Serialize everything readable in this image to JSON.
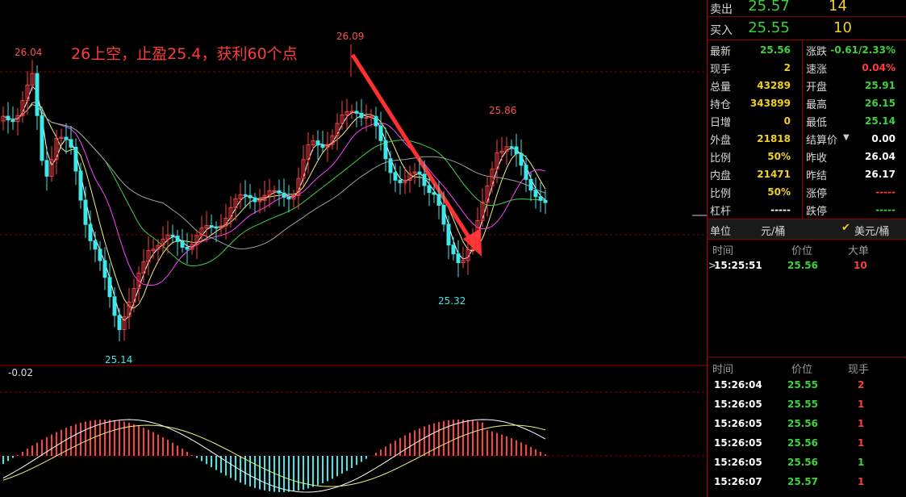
{
  "chart": {
    "annotation": "26上空，止盈25.4，获利60个点",
    "labels": {
      "high1": "26.04",
      "high2": "26.09",
      "high3": "25.86",
      "low1": "25.14",
      "low2": "25.32"
    },
    "macd_value": "-0.02",
    "colors": {
      "up": "#ff4040",
      "down": "#3ce8e8",
      "ma5": "#ffffff",
      "ma10": "#f0f080",
      "ma20": "#ff40ff",
      "ma40": "#40d040",
      "ma60": "#a0a0a0",
      "arrow": "#ff3030"
    }
  },
  "panel": {
    "sell": {
      "label": "卖出",
      "price": "25.57",
      "qty": "14"
    },
    "buy": {
      "label": "买入",
      "price": "25.55",
      "qty": "10"
    },
    "quote_left": [
      {
        "label": "最新",
        "value": "25.56"
      },
      {
        "label": "现手",
        "value": "2"
      },
      {
        "label": "总量",
        "value": "43289"
      },
      {
        "label": "持仓",
        "value": "343899"
      },
      {
        "label": "日增",
        "value": "0"
      },
      {
        "label": "外盘",
        "value": "21818"
      },
      {
        "label": "比例",
        "value": "50%"
      },
      {
        "label": "内盘",
        "value": "21471"
      },
      {
        "label": "比例",
        "value": "50%"
      },
      {
        "label": "杠杆",
        "value": "-----"
      }
    ],
    "quote_right": [
      {
        "label": "涨跌",
        "value": "-0.61/2.33%"
      },
      {
        "label": "速涨",
        "value": "0.04%"
      },
      {
        "label": "开盘",
        "value": "25.91"
      },
      {
        "label": "最高",
        "value": "26.15"
      },
      {
        "label": "最低",
        "value": "25.14"
      },
      {
        "label": "结算价",
        "value": "0.00"
      },
      {
        "label": "昨收",
        "value": "26.04"
      },
      {
        "label": "昨结",
        "value": "26.17"
      },
      {
        "label": "涨停",
        "value": "-----"
      },
      {
        "label": "跌停",
        "value": "-----"
      }
    ],
    "unit": {
      "label": "单位",
      "option1": "元/桶",
      "option2": "美元/桶",
      "check": "✔"
    },
    "bigorders": {
      "headers": [
        "时间",
        "价位",
        "大单"
      ],
      "rows": [
        {
          "time": "15:25:51",
          "price": "25.56",
          "size": "10"
        }
      ]
    },
    "ticks": {
      "headers": [
        "时间",
        "价位",
        "现手"
      ],
      "rows": [
        {
          "time": "15:26:04",
          "price": "25.55",
          "qty": "2"
        },
        {
          "time": "15:26:05",
          "price": "25.55",
          "qty": "1"
        },
        {
          "time": "15:26:05",
          "price": "25.56",
          "qty": "1"
        },
        {
          "time": "15:26:05",
          "price": "25.56",
          "qty": "1"
        },
        {
          "time": "15:26:05",
          "price": "25.56",
          "qty": "1"
        },
        {
          "time": "15:26:07",
          "price": "25.57",
          "qty": "1"
        }
      ]
    }
  }
}
